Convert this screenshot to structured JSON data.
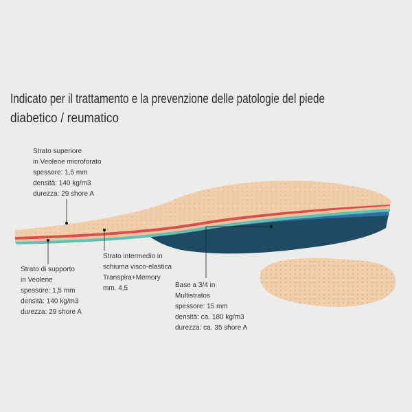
{
  "title": {
    "lines": [
      "Indicato per il trattamento e la prevenzione delle patologie del piede",
      "diabetico / reumatico"
    ]
  },
  "callouts": [
    {
      "lines": [
        "Strato superiore",
        "in Veolene microforato",
        "spessore: 1,5 mm",
        "densità: 140 kg/m3",
        "durezza: 29 shore A"
      ]
    },
    {
      "lines": [
        "Strato di supporto",
        "in Veolene",
        "spessore: 1,5 mm",
        "densità: 140 kg/m3",
        "durezza: 29 shore A"
      ]
    },
    {
      "lines": [
        "Strato intermedio in",
        "schiuma visco-elastica",
        "Transpira+Memory",
        "mm. 4,5"
      ]
    },
    {
      "lines": [
        "Base a 3/4 in",
        "Multistratos",
        "spessore: 15 mm",
        "densità: ca. 180 kg/m3",
        "durezza: ca. 35 shore A"
      ]
    }
  ]
}
